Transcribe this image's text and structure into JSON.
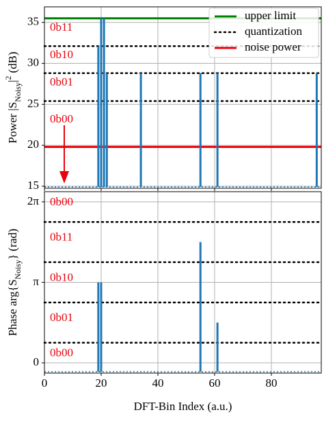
{
  "chart_data": [
    {
      "type": "stem",
      "ylabel": [
        {
          "text": "Power  |S"
        },
        {
          "text": "Noisy",
          "sub": true
        },
        {
          "text": "|"
        },
        {
          "text": "2",
          "sup": true
        },
        {
          "text": " (dB)"
        }
      ],
      "x": [
        19,
        20,
        21,
        22,
        34,
        55,
        61,
        96
      ],
      "values": [
        32.1,
        35.5,
        35.5,
        28.8,
        28.8,
        28.8,
        28.8,
        28.8
      ],
      "color": "#1f77b4",
      "xlim": [
        0,
        97.6
      ],
      "xticks": [
        0,
        20,
        40,
        60,
        80
      ],
      "ylim": [
        14.75,
        36.9
      ],
      "yticks": [
        15,
        20,
        25,
        30,
        35
      ],
      "grid": true,
      "hlines": [
        {
          "name": "upper limit",
          "values": [
            35.5
          ],
          "color": "#008000",
          "style": "solid"
        },
        {
          "name": "quantization",
          "values": [
            32.1,
            28.8,
            25.4
          ],
          "color": "#000000",
          "style": "dotted"
        },
        {
          "name": "noise power",
          "values": [
            19.8
          ],
          "color": "#e8000b",
          "style": "solid"
        }
      ],
      "regions": [
        "0b11",
        "0b10",
        "0b01",
        "0b00"
      ],
      "region_color": "#e8000b",
      "legend": "upper right"
    },
    {
      "type": "stem",
      "ylabel": [
        {
          "text": "Phase  arg{S"
        },
        {
          "text": "Noisy",
          "sub": true
        },
        {
          "text": "} (rad)"
        }
      ],
      "xlabel": "DFT-Bin Index (a.u.)",
      "x": [
        19,
        20,
        55,
        61
      ],
      "values": [
        3.1416,
        3.1416,
        4.7124,
        1.5708
      ],
      "color": "#1f77b4",
      "xlim": [
        0,
        97.6
      ],
      "xticks": [
        0,
        20,
        40,
        60,
        80
      ],
      "ylim": [
        -0.4,
        6.68
      ],
      "yticks": [
        0,
        {
          "value": 3.1416,
          "label": "π"
        },
        {
          "value": 6.2832,
          "label": "2π"
        }
      ],
      "grid": true,
      "hlines": [
        {
          "name": "quantization",
          "values": [
            0.7854,
            2.3562,
            3.927,
            5.4978
          ],
          "color": "#000000",
          "style": "dotted"
        }
      ],
      "regions": [
        "0b00",
        "0b11",
        "0b10",
        "0b01",
        "0b00"
      ],
      "region_color": "#e8000b"
    }
  ]
}
